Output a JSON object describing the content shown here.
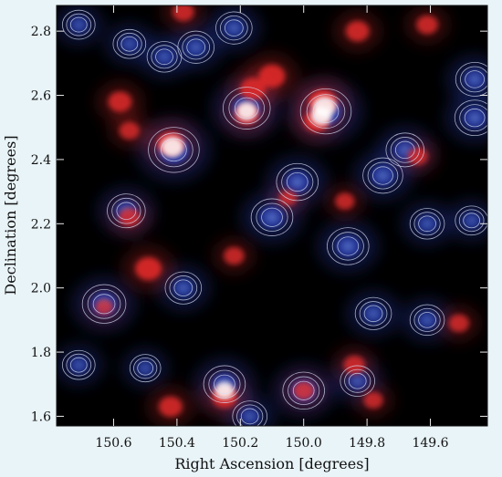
{
  "chart_data": {
    "type": "heatmap",
    "title": "",
    "xlabel": "Right Ascension [degrees]",
    "ylabel": "Declination [degrees]",
    "xlim": [
      150.78,
      149.42
    ],
    "ylim": [
      1.57,
      2.88
    ],
    "x_ticks": [
      {
        "value": 150.6,
        "label": "150.6"
      },
      {
        "value": 150.4,
        "label": "150.4"
      },
      {
        "value": 150.2,
        "label": "150.2"
      },
      {
        "value": 150.0,
        "label": "150.0"
      },
      {
        "value": 149.8,
        "label": "149.8"
      },
      {
        "value": 149.6,
        "label": "149.6"
      }
    ],
    "y_ticks": [
      {
        "value": 1.6,
        "label": "1.6"
      },
      {
        "value": 1.8,
        "label": "1.8"
      },
      {
        "value": 2.0,
        "label": "2.0"
      },
      {
        "value": 2.2,
        "label": "2.2"
      },
      {
        "value": 2.4,
        "label": "2.4"
      },
      {
        "value": 2.6,
        "label": "2.6"
      },
      {
        "value": 2.8,
        "label": "2.8"
      }
    ],
    "colors": {
      "background": "#000000",
      "red_channel": "#e02a2a",
      "blue_channel": "#2a3fae",
      "overlap_peak": "#ffffff",
      "contour": "#d8e0f5",
      "page": "#e9f4f8"
    },
    "red_sources": [
      {
        "ra": 150.42,
        "dec": 2.45,
        "level": 0.9
      },
      {
        "ra": 150.16,
        "dec": 2.62,
        "level": 0.8
      },
      {
        "ra": 150.1,
        "dec": 2.66,
        "level": 0.85
      },
      {
        "ra": 149.94,
        "dec": 2.58,
        "level": 0.95
      },
      {
        "ra": 149.96,
        "dec": 2.52,
        "level": 0.8
      },
      {
        "ra": 150.18,
        "dec": 2.54,
        "level": 0.75
      },
      {
        "ra": 150.58,
        "dec": 2.58,
        "level": 0.7
      },
      {
        "ra": 150.55,
        "dec": 2.49,
        "level": 0.55
      },
      {
        "ra": 150.49,
        "dec": 2.06,
        "level": 0.85
      },
      {
        "ra": 150.55,
        "dec": 2.22,
        "level": 0.6
      },
      {
        "ra": 150.25,
        "dec": 1.66,
        "level": 0.8
      },
      {
        "ra": 150.42,
        "dec": 1.63,
        "level": 0.7
      },
      {
        "ra": 149.83,
        "dec": 2.8,
        "level": 0.7
      },
      {
        "ra": 149.87,
        "dec": 2.27,
        "level": 0.5
      },
      {
        "ra": 150.05,
        "dec": 2.28,
        "level": 0.45
      },
      {
        "ra": 150.38,
        "dec": 2.86,
        "level": 0.6
      },
      {
        "ra": 150.22,
        "dec": 2.1,
        "level": 0.55
      },
      {
        "ra": 149.61,
        "dec": 2.82,
        "level": 0.6
      },
      {
        "ra": 150.0,
        "dec": 1.68,
        "level": 0.6
      },
      {
        "ra": 149.84,
        "dec": 1.76,
        "level": 0.6
      },
      {
        "ra": 149.64,
        "dec": 2.41,
        "level": 0.55
      },
      {
        "ra": 149.51,
        "dec": 1.89,
        "level": 0.55
      },
      {
        "ra": 150.63,
        "dec": 1.94,
        "level": 0.45
      },
      {
        "ra": 149.78,
        "dec": 1.65,
        "level": 0.5
      }
    ],
    "blue_sources": [
      {
        "ra": 150.41,
        "dec": 2.43,
        "level": 0.95
      },
      {
        "ra": 150.18,
        "dec": 2.56,
        "level": 0.85
      },
      {
        "ra": 149.93,
        "dec": 2.55,
        "level": 0.95
      },
      {
        "ra": 150.02,
        "dec": 2.33,
        "level": 0.7
      },
      {
        "ra": 150.1,
        "dec": 2.22,
        "level": 0.7
      },
      {
        "ra": 149.75,
        "dec": 2.35,
        "level": 0.65
      },
      {
        "ra": 149.68,
        "dec": 2.43,
        "level": 0.6
      },
      {
        "ra": 149.86,
        "dec": 2.13,
        "level": 0.7
      },
      {
        "ra": 150.34,
        "dec": 2.75,
        "level": 0.55
      },
      {
        "ra": 150.22,
        "dec": 2.81,
        "level": 0.55
      },
      {
        "ra": 150.44,
        "dec": 2.72,
        "level": 0.5
      },
      {
        "ra": 150.55,
        "dec": 2.76,
        "level": 0.45
      },
      {
        "ra": 150.71,
        "dec": 2.82,
        "level": 0.45
      },
      {
        "ra": 150.56,
        "dec": 2.24,
        "level": 0.6
      },
      {
        "ra": 150.63,
        "dec": 1.95,
        "level": 0.75
      },
      {
        "ra": 150.38,
        "dec": 2.0,
        "level": 0.55
      },
      {
        "ra": 150.25,
        "dec": 1.7,
        "level": 0.7
      },
      {
        "ra": 150.0,
        "dec": 1.68,
        "level": 0.7
      },
      {
        "ra": 149.83,
        "dec": 1.71,
        "level": 0.5
      },
      {
        "ra": 149.78,
        "dec": 1.92,
        "level": 0.55
      },
      {
        "ra": 149.61,
        "dec": 1.9,
        "level": 0.5
      },
      {
        "ra": 149.46,
        "dec": 2.65,
        "level": 0.6
      },
      {
        "ra": 149.46,
        "dec": 2.53,
        "level": 0.65
      },
      {
        "ra": 150.71,
        "dec": 1.76,
        "level": 0.45
      },
      {
        "ra": 150.5,
        "dec": 1.75,
        "level": 0.4
      },
      {
        "ra": 149.61,
        "dec": 2.2,
        "level": 0.5
      },
      {
        "ra": 149.47,
        "dec": 2.21,
        "level": 0.45
      },
      {
        "ra": 150.17,
        "dec": 1.6,
        "level": 0.5
      }
    ],
    "grid": false,
    "legend": "none"
  }
}
